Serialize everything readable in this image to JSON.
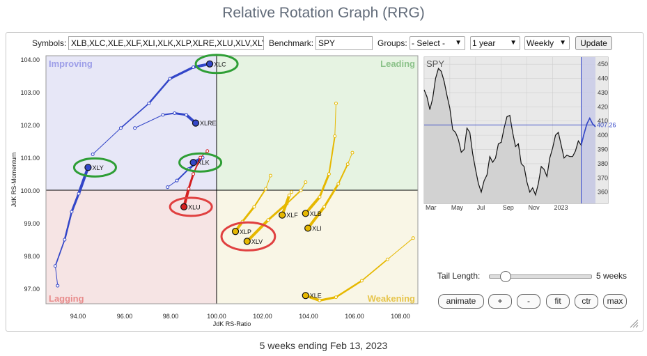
{
  "header": {
    "title": "Relative Rotation Graph (RRG)"
  },
  "controls": {
    "symbols_label": "Symbols:",
    "symbols_value": "XLB,XLC,XLE,XLF,XLI,XLK,XLP,XLRE,XLU,XLV,XLY",
    "benchmark_label": "Benchmark:",
    "benchmark_value": "SPY",
    "groups_label": "Groups:",
    "groups_value": "- Select -",
    "period_value": "1 year",
    "frequency_value": "Weekly",
    "update_label": "Update"
  },
  "rrg": {
    "quadrants": {
      "improving": "Improving",
      "leading": "Leading",
      "lagging": "Lagging",
      "weakening": "Weakening"
    },
    "x_axis_label": "JdK RS-Ratio",
    "y_axis_label": "JdK RS-Momentum",
    "x_ticks": [
      "94.00",
      "96.00",
      "98.00",
      "100.00",
      "102.00",
      "104.00",
      "106.00",
      "108.00"
    ],
    "y_ticks": [
      "104.00",
      "103.00",
      "102.00",
      "101.00",
      "100.00",
      "99.00",
      "98.00",
      "97.00"
    ]
  },
  "chart_data": [
    {
      "type": "scatter",
      "title": "",
      "xlabel": "JdK RS-Ratio",
      "ylabel": "JdK RS-Momentum",
      "xlim": [
        92.7,
        108.6
      ],
      "ylim": [
        96.6,
        104.15
      ],
      "grid": false,
      "quadrant_center": [
        100,
        100
      ],
      "series": [
        {
          "name": "XLC",
          "color": "#3346c8",
          "tail": [
            [
              94.7,
              101.15
            ],
            [
              95.9,
              101.95
            ],
            [
              97.1,
              102.7
            ],
            [
              98.0,
              103.45
            ],
            [
              99.0,
              103.8
            ],
            [
              99.7,
              103.9
            ]
          ]
        },
        {
          "name": "XLRE",
          "color": "#3346c8",
          "tail": [
            [
              96.5,
              101.95
            ],
            [
              97.7,
              102.35
            ],
            [
              98.2,
              102.4
            ],
            [
              98.7,
              102.35
            ],
            [
              99.1,
              102.1
            ]
          ]
        },
        {
          "name": "XLK",
          "color": "#3346c8",
          "tail": [
            [
              97.9,
              100.15
            ],
            [
              98.3,
              100.35
            ],
            [
              98.8,
              100.7
            ],
            [
              99.4,
              101.05
            ],
            [
              99.0,
              100.9
            ]
          ]
        },
        {
          "name": "XLY",
          "color": "#3346c8",
          "tail": [
            [
              93.2,
              97.15
            ],
            [
              93.1,
              97.75
            ],
            [
              93.5,
              98.55
            ],
            [
              93.8,
              99.4
            ],
            [
              94.1,
              99.95
            ],
            [
              94.5,
              100.75
            ]
          ]
        },
        {
          "name": "XLU",
          "color": "#d42020",
          "tail": [
            [
              99.6,
              101.25
            ],
            [
              99.3,
              101.05
            ],
            [
              99.0,
              100.55
            ],
            [
              98.8,
              100.1
            ],
            [
              98.6,
              99.55
            ]
          ]
        },
        {
          "name": "XLP",
          "color": "#e6b800",
          "tail": [
            [
              102.3,
              100.5
            ],
            [
              102.1,
              100.1
            ],
            [
              101.6,
              99.55
            ],
            [
              101.1,
              99.1
            ],
            [
              100.8,
              98.8
            ]
          ]
        },
        {
          "name": "XLV",
          "color": "#e6b800",
          "tail": [
            [
              103.8,
              100.3
            ],
            [
              103.6,
              100.05
            ],
            [
              103.0,
              99.65
            ],
            [
              102.2,
              99.15
            ],
            [
              101.3,
              98.5
            ]
          ]
        },
        {
          "name": "XLF",
          "color": "#e6b800",
          "tail": [
            [
              103.2,
              100.0
            ],
            [
              103.1,
              99.9
            ],
            [
              102.8,
              99.3
            ]
          ]
        },
        {
          "name": "XLB",
          "color": "#e6b800",
          "tail": [
            [
              105.1,
              102.7
            ],
            [
              105.05,
              101.7
            ],
            [
              104.8,
              100.55
            ],
            [
              104.4,
              99.85
            ],
            [
              103.8,
              99.35
            ]
          ]
        },
        {
          "name": "XLI",
          "color": "#e6b800",
          "tail": [
            [
              105.8,
              101.2
            ],
            [
              105.6,
              100.85
            ],
            [
              105.2,
              100.25
            ],
            [
              104.6,
              99.55
            ],
            [
              103.9,
              98.9
            ]
          ]
        },
        {
          "name": "XLE",
          "color": "#e6b800",
          "tail": [
            [
              108.4,
              98.6
            ],
            [
              107.3,
              97.95
            ],
            [
              106.2,
              97.3
            ],
            [
              105.1,
              96.8
            ],
            [
              104.4,
              96.7
            ],
            [
              103.8,
              96.85
            ]
          ]
        }
      ],
      "highlights": [
        {
          "ticker": "XLC",
          "color": "#2e9e35"
        },
        {
          "ticker": "XLY",
          "color": "#2e9e35"
        },
        {
          "ticker": "XLK",
          "color": "#2e9e35"
        },
        {
          "ticker": "XLU",
          "color": "#e04040"
        },
        {
          "ticker": "XLP/XLV",
          "color": "#e04040"
        }
      ]
    },
    {
      "type": "area",
      "title": "SPY",
      "x_ticks": [
        "Mar",
        "May",
        "Jul",
        "Sep",
        "Nov",
        "2023"
      ],
      "y_ticks": [
        "450",
        "440",
        "430",
        "420",
        "410",
        "400",
        "390",
        "380",
        "370",
        "360"
      ],
      "ylim": [
        352,
        455
      ],
      "last_value": "407.26",
      "highlight_weeks": 5,
      "values": [
        432,
        427,
        418,
        426,
        440,
        447,
        445,
        438,
        428,
        419,
        404,
        402,
        397,
        388,
        390,
        405,
        402,
        387,
        376,
        366,
        360,
        368,
        372,
        385,
        381,
        384,
        394,
        395,
        405,
        413,
        414,
        402,
        392,
        394,
        380,
        378,
        367,
        360,
        363,
        358,
        366,
        378,
        376,
        371,
        384,
        391,
        400,
        402,
        393,
        384,
        386,
        385,
        385,
        389,
        396,
        393,
        401,
        408,
        412,
        408,
        406
      ]
    }
  ],
  "bottom": {
    "tail_length_label": "Tail Length:",
    "tail_length_value": "5 weeks",
    "tail_length_fraction": 0.15,
    "buttons": {
      "animate": "animate",
      "plus": "+",
      "minus": "-",
      "fit": "fit",
      "ctr": "ctr",
      "max": "max"
    },
    "footer": "5 weeks ending Feb 13, 2023"
  }
}
